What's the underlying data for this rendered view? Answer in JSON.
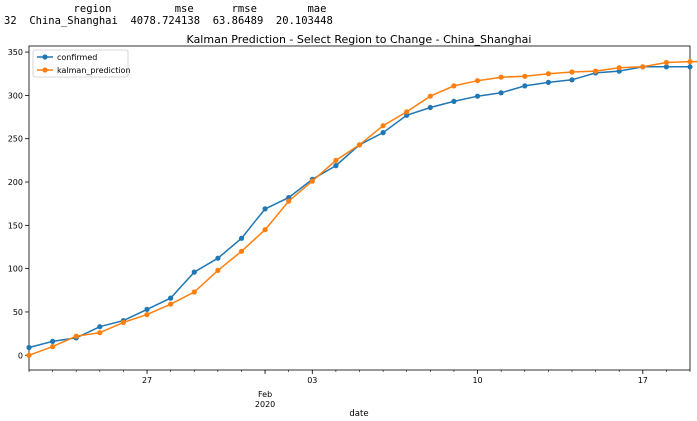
{
  "dataframe": {
    "columns": [
      "region",
      "mse",
      "rmse",
      "mae"
    ],
    "rows": [
      {
        "index": "32",
        "region": "China_Shanghai",
        "mse": "4078.724138",
        "rmse": "63.86489",
        "mae": "20.103448"
      }
    ]
  },
  "chart_data": {
    "type": "line",
    "title": "Kalman Prediction - Select Region to Change - China_Shanghai",
    "xlabel": "date",
    "ylabel": "",
    "x_start": "2020-01-22",
    "x_end": "2020-02-19",
    "ylim": [
      -17,
      357
    ],
    "yticks": [
      0,
      50,
      100,
      150,
      200,
      250,
      300,
      350
    ],
    "xticks": [
      {
        "date": "2020-01-27",
        "label": "27"
      },
      {
        "date": "2020-02-03",
        "label": "03"
      },
      {
        "date": "2020-02-10",
        "label": "10"
      },
      {
        "date": "2020-02-17",
        "label": "17"
      }
    ],
    "month_label": {
      "date": "2020-02-01",
      "month": "Feb",
      "year": "2020"
    },
    "legend": "upper-left",
    "grid": false,
    "series": [
      {
        "name": "confirmed",
        "color": "#1f77b4",
        "values": [
          9,
          16,
          20,
          33,
          40,
          53,
          66,
          96,
          112,
          135,
          169,
          182,
          203,
          219,
          243,
          257,
          277,
          286,
          293,
          299,
          303,
          311,
          315,
          318,
          326,
          328,
          333,
          333,
          333
        ]
      },
      {
        "name": "kalman_prediction",
        "color": "#ff7f0e",
        "values": [
          0,
          10,
          22,
          26,
          38,
          47,
          59,
          73,
          98,
          120,
          145,
          178,
          201,
          225,
          243,
          265,
          281,
          299,
          311,
          317,
          321,
          322,
          325,
          327,
          328,
          332,
          333,
          338,
          339,
          339
        ]
      }
    ]
  }
}
